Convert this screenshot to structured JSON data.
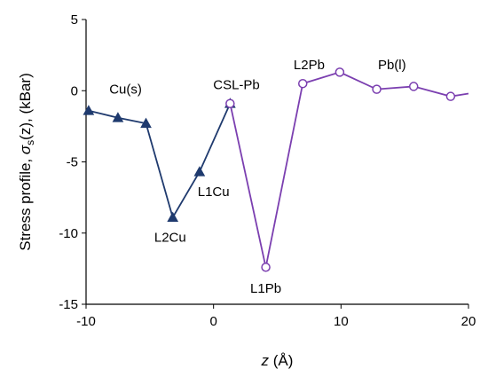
{
  "chart_data": {
    "type": "line",
    "xlim": [
      -10,
      20
    ],
    "ylim": [
      -15,
      5
    ],
    "xticks": [
      -10,
      0,
      10,
      20
    ],
    "yticks": [
      5,
      0,
      -5,
      -10,
      -15
    ],
    "xtick_labels": [
      "-10",
      "0",
      "10",
      "20"
    ],
    "ytick_labels": [
      "5",
      "0",
      "-5",
      "-10",
      "-15"
    ],
    "xlabel_main": "z",
    "xlabel_unit": " (Å)",
    "ylabel_prefix": "Stress profile, ",
    "ylabel_symbol": "σ",
    "ylabel_sub": "s",
    "ylabel_suffix": "(z), (kBar)",
    "grid": false,
    "series": [
      {
        "color": "#1f3a6e",
        "marker": "filled-triangle",
        "points": [
          {
            "x": -9.8,
            "y": -1.4
          },
          {
            "x": -7.5,
            "y": -1.9
          },
          {
            "x": -5.3,
            "y": -2.3
          },
          {
            "x": -3.2,
            "y": -8.9
          },
          {
            "x": -1.1,
            "y": -5.7
          },
          {
            "x": 1.3,
            "y": -0.9
          }
        ]
      },
      {
        "color": "#7b3fb0",
        "marker": "open-circle",
        "points": [
          {
            "x": 1.3,
            "y": -0.9
          },
          {
            "x": 4.1,
            "y": -12.4
          },
          {
            "x": 7.0,
            "y": 0.5
          },
          {
            "x": 9.9,
            "y": 1.3
          },
          {
            "x": 12.8,
            "y": 0.1
          },
          {
            "x": 15.7,
            "y": 0.3
          },
          {
            "x": 18.6,
            "y": -0.4
          },
          {
            "x": 20.0,
            "y": -0.2
          }
        ]
      }
    ],
    "annotations": [
      {
        "text": "Cu(s)",
        "x": -6.9,
        "y": -0.2
      },
      {
        "text": "CSL-Pb",
        "x": 1.8,
        "y": 0.1
      },
      {
        "text": "L2Pb",
        "x": 7.5,
        "y": 1.5
      },
      {
        "text": "Pb(l)",
        "x": 14.0,
        "y": 1.5
      },
      {
        "text": "L1Cu",
        "x": 0.0,
        "y": -7.4
      },
      {
        "text": "L2Cu",
        "x": -3.4,
        "y": -10.6
      },
      {
        "text": "L1Pb",
        "x": 4.1,
        "y": -14.2
      }
    ]
  }
}
